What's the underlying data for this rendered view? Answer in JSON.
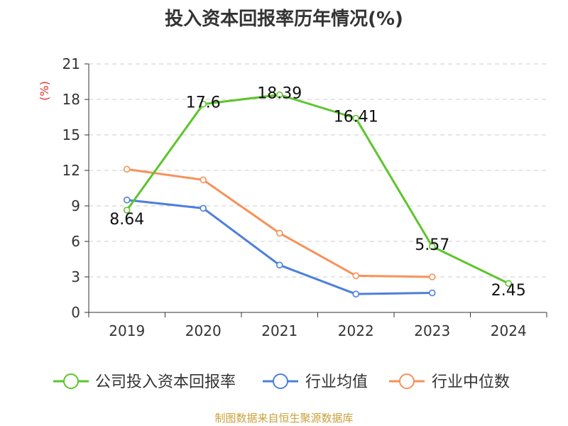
{
  "chart_data": {
    "type": "line",
    "title": "投入资本回报率历年情况(%)",
    "ylabel": "(%)",
    "categories": [
      "2019",
      "2020",
      "2021",
      "2022",
      "2023",
      "2024"
    ],
    "ylim": [
      0,
      21
    ],
    "yticks": [
      0,
      3,
      6,
      9,
      12,
      15,
      18,
      21
    ],
    "grid": true,
    "legend_position": "bottom",
    "series": [
      {
        "name": "公司投入资本回报率",
        "color": "#5cc52b",
        "values": [
          8.64,
          17.6,
          18.39,
          16.41,
          5.57,
          2.45
        ],
        "labels": [
          "8.64",
          "17.6",
          "18.39",
          "16.41",
          "5.57",
          "2.45"
        ]
      },
      {
        "name": "行业均值",
        "color": "#4d7fdc",
        "values": [
          9.5,
          8.8,
          4.0,
          1.55,
          1.65,
          null
        ]
      },
      {
        "name": "行业中位数",
        "color": "#f79259",
        "values": [
          12.1,
          11.2,
          6.7,
          3.1,
          3.0,
          null
        ]
      }
    ]
  },
  "source": "制图数据来自恒生聚源数据库"
}
